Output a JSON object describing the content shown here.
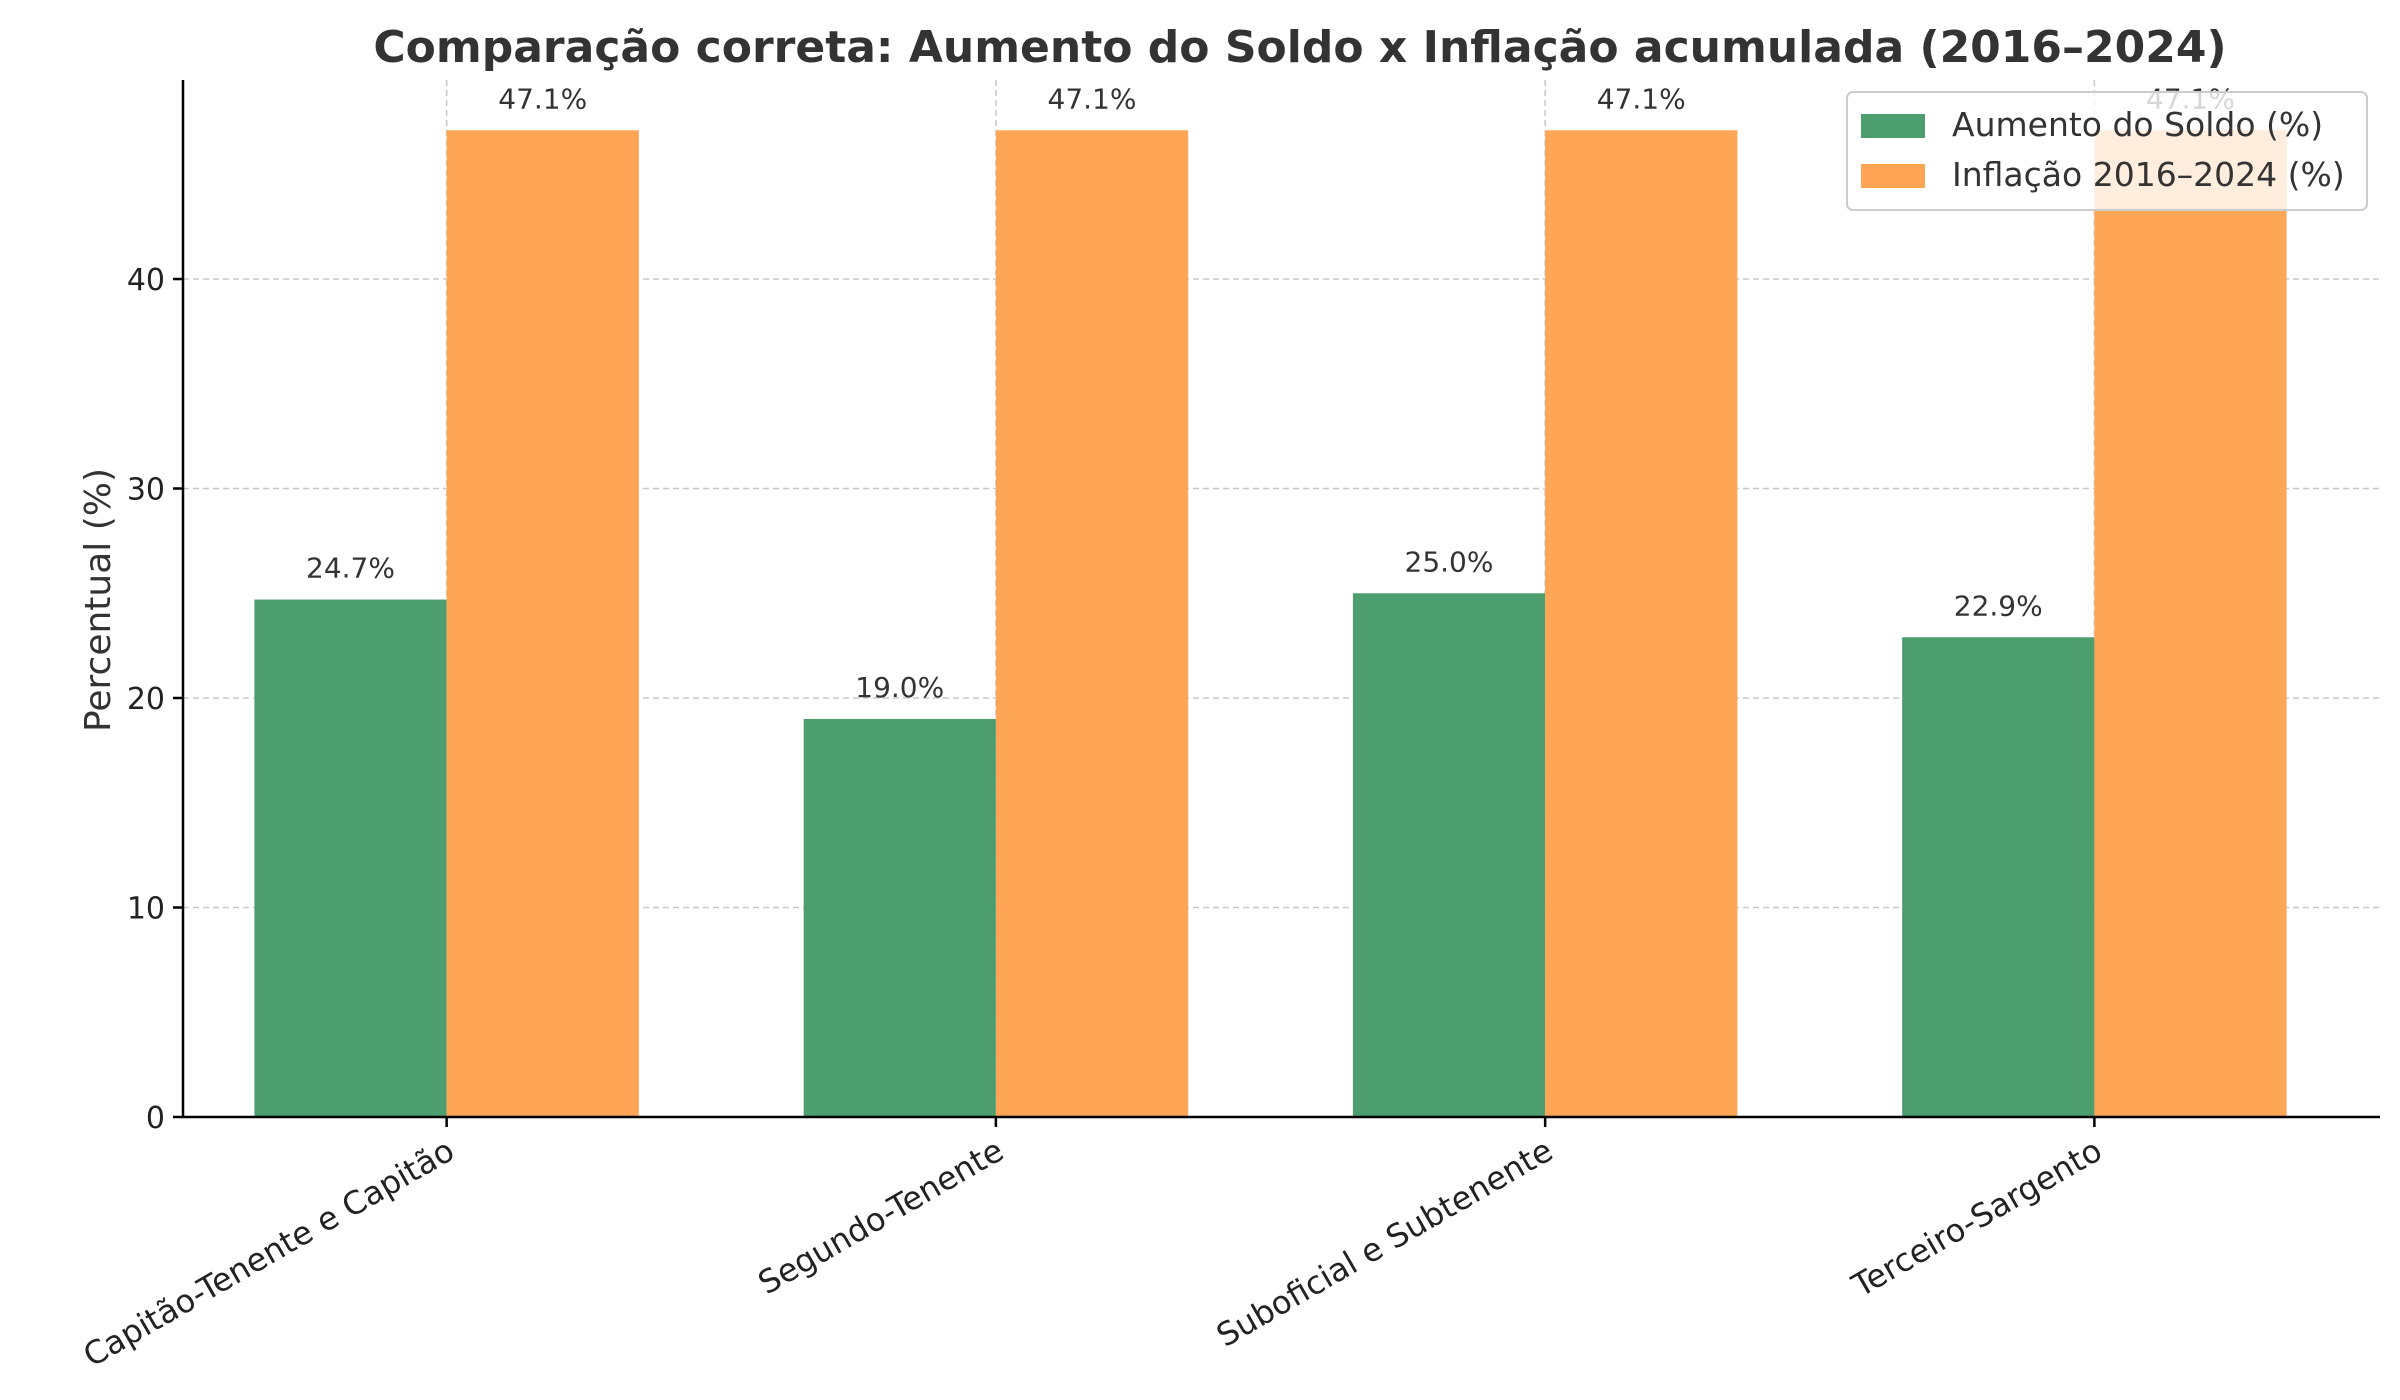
{
  "chart_data": {
    "type": "bar",
    "title": "Comparação correta: Aumento do Soldo x Inflação acumulada (2016–2024)",
    "xlabel": "",
    "ylabel": "Percentual (%)",
    "categories": [
      "Capitão-Tenente e Capitão",
      "Segundo-Tenente",
      "Suboficial e Subtenente",
      "Terceiro-Sargento"
    ],
    "series": [
      {
        "name": "Aumento do Soldo (%)",
        "values": [
          24.7,
          19.0,
          25.0,
          22.9
        ],
        "labels": [
          "24.7%",
          "19.0%",
          "25.0%",
          "22.9%"
        ],
        "color": "#4c9e6f"
      },
      {
        "name": "Inflação 2016–2024 (%)",
        "values": [
          47.1,
          47.1,
          47.1,
          47.1
        ],
        "labels": [
          "47.1%",
          "47.1%",
          "47.1%",
          "47.1%"
        ],
        "color": "#ffa556"
      }
    ],
    "ylim": [
      0,
      49.5
    ],
    "yticks": [
      0,
      10,
      20,
      30,
      40
    ],
    "ytick_labels": [
      "0",
      "10",
      "20",
      "30",
      "40"
    ],
    "grid": true,
    "legend_position": "top-right",
    "tick_label_rotation": "30°"
  }
}
